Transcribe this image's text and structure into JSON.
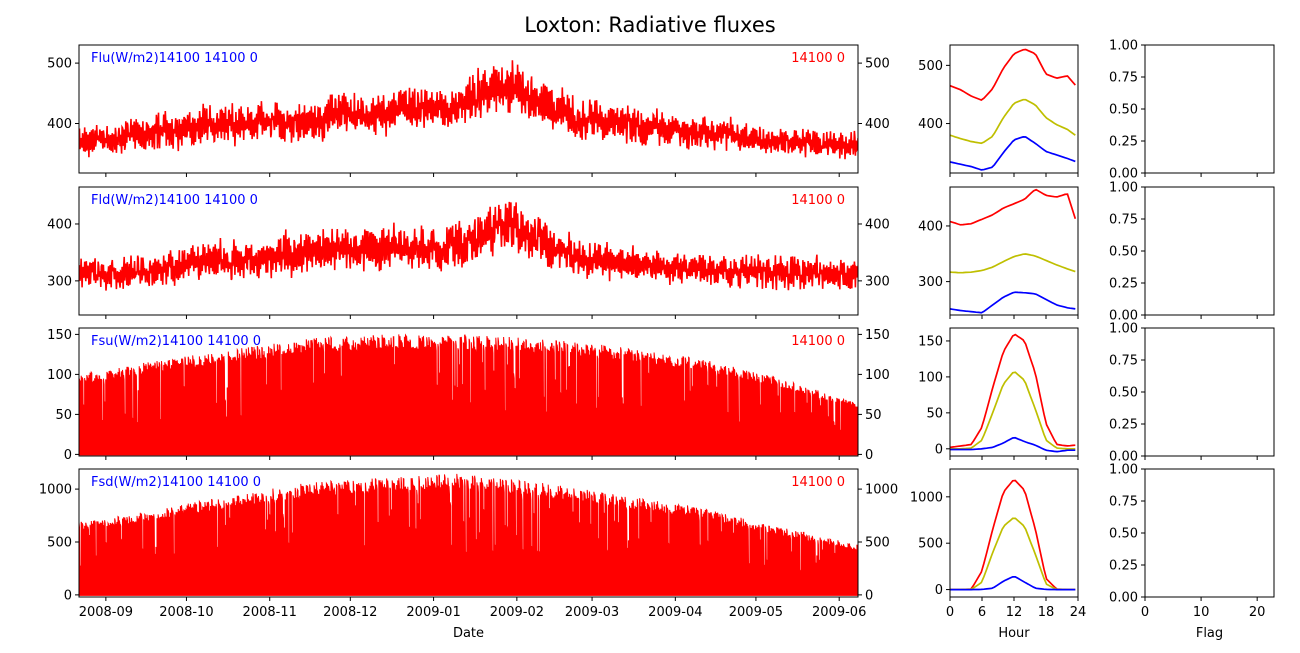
{
  "figure_title": "Loxton: Radiative fluxes",
  "x_labels": {
    "time": "Date",
    "diurnal": "Hour",
    "flag": "Flag"
  },
  "colors": {
    "series": "#ff0000",
    "label_left": "#0000ff",
    "label_right": "#ff0000",
    "diurnal_max": "#ff0000",
    "diurnal_mean": "#bfbf00",
    "diurnal_min": "#0000ff"
  },
  "date_ticks": [
    "2008-09",
    "2008-10",
    "2008-11",
    "2008-12",
    "2009-01",
    "2009-02",
    "2009-03",
    "2009-04",
    "2009-05",
    "2009-06"
  ],
  "panels": [
    {
      "id": "flu",
      "label_left": "Flu(W/m2)14100 14100 0",
      "label_right": "14100 0"
    },
    {
      "id": "fld",
      "label_left": "Fld(W/m2)14100 14100 0",
      "label_right": "14100 0"
    },
    {
      "id": "fsu",
      "label_left": "Fsu(W/m2)14100 14100 0",
      "label_right": "14100 0"
    },
    {
      "id": "fsd",
      "label_left": "Fsd(W/m2)14100 14100 0",
      "label_right": "14100 0"
    }
  ],
  "chart_data": [
    {
      "type": "area",
      "name": "Flu time series",
      "ylabel_text": "Flu(W/m2)14100 14100 0",
      "x_range": [
        "2008-08-22",
        "2009-06-08"
      ],
      "ylim": [
        318,
        530
      ],
      "yticks": [
        400,
        500
      ],
      "envelope": {
        "dates": [
          "2008-08-22",
          "2008-09-15",
          "2008-10-15",
          "2008-11-15",
          "2008-12-15",
          "2009-01-10",
          "2009-01-28",
          "2009-02-08",
          "2009-02-25",
          "2009-03-20",
          "2009-04-15",
          "2009-05-10",
          "2009-06-08"
        ],
        "baseline": [
          345,
          352,
          365,
          372,
          385,
          390,
          420,
          400,
          375,
          365,
          358,
          345,
          340
        ],
        "amplitude": [
          50,
          60,
          65,
          70,
          70,
          72,
          95,
          75,
          65,
          60,
          55,
          45,
          45
        ]
      }
    },
    {
      "type": "area",
      "name": "Fld time series",
      "ylabel_text": "Fld(W/m2)14100 14100 0",
      "x_range": [
        "2008-08-22",
        "2009-06-08"
      ],
      "ylim": [
        240,
        465
      ],
      "yticks": [
        300,
        400
      ],
      "envelope": {
        "dates": [
          "2008-08-22",
          "2008-09-15",
          "2008-10-15",
          "2008-11-15",
          "2008-12-15",
          "2009-01-10",
          "2009-01-28",
          "2009-02-08",
          "2009-02-25",
          "2009-03-20",
          "2009-04-15",
          "2009-05-10",
          "2009-06-08"
        ],
        "baseline": [
          285,
          290,
          300,
          310,
          318,
          322,
          360,
          330,
          305,
          300,
          290,
          285,
          285
        ],
        "amplitude": [
          50,
          55,
          70,
          80,
          75,
          80,
          90,
          80,
          65,
          60,
          55,
          60,
          55
        ]
      }
    },
    {
      "type": "area",
      "name": "Fsu time series",
      "ylabel_text": "Fsu(W/m2)14100 14100 0",
      "x_range": [
        "2008-08-22",
        "2009-06-08"
      ],
      "ylim": [
        -2,
        158
      ],
      "yticks": [
        0,
        50,
        100,
        150
      ],
      "envelope": {
        "dates": [
          "2008-08-22",
          "2008-09-15",
          "2008-10-15",
          "2008-11-15",
          "2008-12-15",
          "2009-01-10",
          "2009-02-10",
          "2009-03-10",
          "2009-04-10",
          "2009-05-10",
          "2009-06-08"
        ],
        "peak": [
          100,
          115,
          130,
          145,
          150,
          150,
          145,
          135,
          120,
          95,
          65
        ]
      }
    },
    {
      "type": "area",
      "name": "Fsd time series",
      "ylabel_text": "Fsd(W/m2)14100 14100 0",
      "x_range": [
        "2008-08-22",
        "2009-06-08"
      ],
      "ylim": [
        -20,
        1190
      ],
      "yticks": [
        0,
        500,
        1000
      ],
      "envelope": {
        "dates": [
          "2008-08-22",
          "2008-09-15",
          "2008-10-15",
          "2008-11-15",
          "2008-12-15",
          "2009-01-10",
          "2009-02-10",
          "2009-03-10",
          "2009-04-10",
          "2009-05-10",
          "2009-06-08"
        ],
        "peak": [
          700,
          790,
          930,
          1060,
          1110,
          1150,
          1060,
          950,
          830,
          640,
          480
        ]
      }
    },
    {
      "type": "line",
      "name": "Flu diurnal",
      "ylabel_text": "Flu(W/m2)14100 14100 0",
      "xlim": [
        0,
        24
      ],
      "xticks": [
        0,
        6,
        12,
        18,
        24
      ],
      "ylim": [
        315,
        535
      ],
      "yticks": [
        400,
        500
      ],
      "x": [
        0,
        2,
        4,
        6,
        8,
        10,
        12,
        14,
        16,
        18,
        20,
        22,
        23.5
      ],
      "series": [
        {
          "role": "max",
          "values": [
            465,
            458,
            447,
            440,
            460,
            495,
            520,
            528,
            520,
            485,
            478,
            482,
            466
          ]
        },
        {
          "role": "mean",
          "values": [
            380,
            374,
            369,
            366,
            378,
            410,
            435,
            442,
            432,
            410,
            398,
            390,
            380
          ]
        },
        {
          "role": "min",
          "values": [
            334,
            330,
            326,
            320,
            325,
            350,
            372,
            378,
            366,
            352,
            346,
            340,
            335
          ]
        }
      ]
    },
    {
      "type": "line",
      "name": "Fld diurnal",
      "ylabel_text": "Fld(W/m2)14100 14100 0",
      "xlim": [
        0,
        24
      ],
      "xticks": [
        0,
        6,
        12,
        18,
        24
      ],
      "ylim": [
        240,
        470
      ],
      "yticks": [
        300,
        400
      ],
      "x": [
        0,
        2,
        4,
        6,
        8,
        10,
        12,
        14,
        16,
        18,
        20,
        22,
        23.5
      ],
      "series": [
        {
          "role": "max",
          "values": [
            408,
            402,
            404,
            412,
            420,
            432,
            440,
            448,
            466,
            455,
            452,
            458,
            413
          ]
        },
        {
          "role": "mean",
          "values": [
            317,
            316,
            317,
            320,
            326,
            336,
            345,
            350,
            346,
            338,
            330,
            323,
            318
          ]
        },
        {
          "role": "min",
          "values": [
            251,
            248,
            246,
            244,
            258,
            272,
            281,
            280,
            278,
            268,
            258,
            253,
            251
          ]
        }
      ]
    },
    {
      "type": "line",
      "name": "Fsu diurnal",
      "ylabel_text": "Fsu(W/m2)14100 14100 0",
      "xlim": [
        0,
        24
      ],
      "xticks": [
        0,
        6,
        12,
        18,
        24
      ],
      "ylim": [
        -10,
        168
      ],
      "yticks": [
        0,
        50,
        100,
        150
      ],
      "x": [
        0,
        2,
        4,
        6,
        8,
        10,
        12,
        14,
        16,
        18,
        20,
        22,
        23.5
      ],
      "series": [
        {
          "role": "max",
          "values": [
            2,
            4,
            6,
            30,
            85,
            135,
            160,
            150,
            105,
            35,
            6,
            4,
            5
          ]
        },
        {
          "role": "mean",
          "values": [
            0,
            0,
            1,
            12,
            50,
            90,
            108,
            95,
            55,
            12,
            1,
            0,
            0
          ]
        },
        {
          "role": "min",
          "values": [
            -1,
            -1,
            -1,
            0,
            2,
            8,
            16,
            10,
            5,
            -2,
            -4,
            -2,
            -2
          ]
        }
      ]
    },
    {
      "type": "line",
      "name": "Fsd diurnal",
      "ylabel_text": "Fsd(W/m2)14100 14100 0",
      "xlim": [
        0,
        24
      ],
      "xticks": [
        0,
        6,
        12,
        18,
        24
      ],
      "ylim": [
        -80,
        1300
      ],
      "yticks": [
        0,
        500,
        1000
      ],
      "x": [
        0,
        2,
        4,
        6,
        8,
        10,
        12,
        14,
        16,
        18,
        20,
        22,
        23.5
      ],
      "series": [
        {
          "role": "max",
          "values": [
            0,
            0,
            5,
            200,
            650,
            1050,
            1190,
            1070,
            650,
            120,
            5,
            0,
            0
          ]
        },
        {
          "role": "mean",
          "values": [
            0,
            0,
            2,
            80,
            400,
            680,
            780,
            680,
            380,
            60,
            2,
            0,
            0
          ]
        },
        {
          "role": "min",
          "values": [
            0,
            0,
            0,
            2,
            15,
            90,
            145,
            80,
            15,
            2,
            0,
            0,
            0
          ]
        }
      ]
    },
    {
      "type": "bar",
      "name": "Flag histograms (empty)",
      "xlim": [
        0,
        23
      ],
      "xticks": [
        0,
        10,
        20
      ],
      "ylim": [
        0,
        1
      ],
      "yticks": [
        0,
        0.25,
        0.5,
        0.75,
        1.0
      ],
      "ytick_labels": [
        "0.00",
        "0.25",
        "0.50",
        "0.75",
        "1.00"
      ],
      "values": []
    }
  ]
}
